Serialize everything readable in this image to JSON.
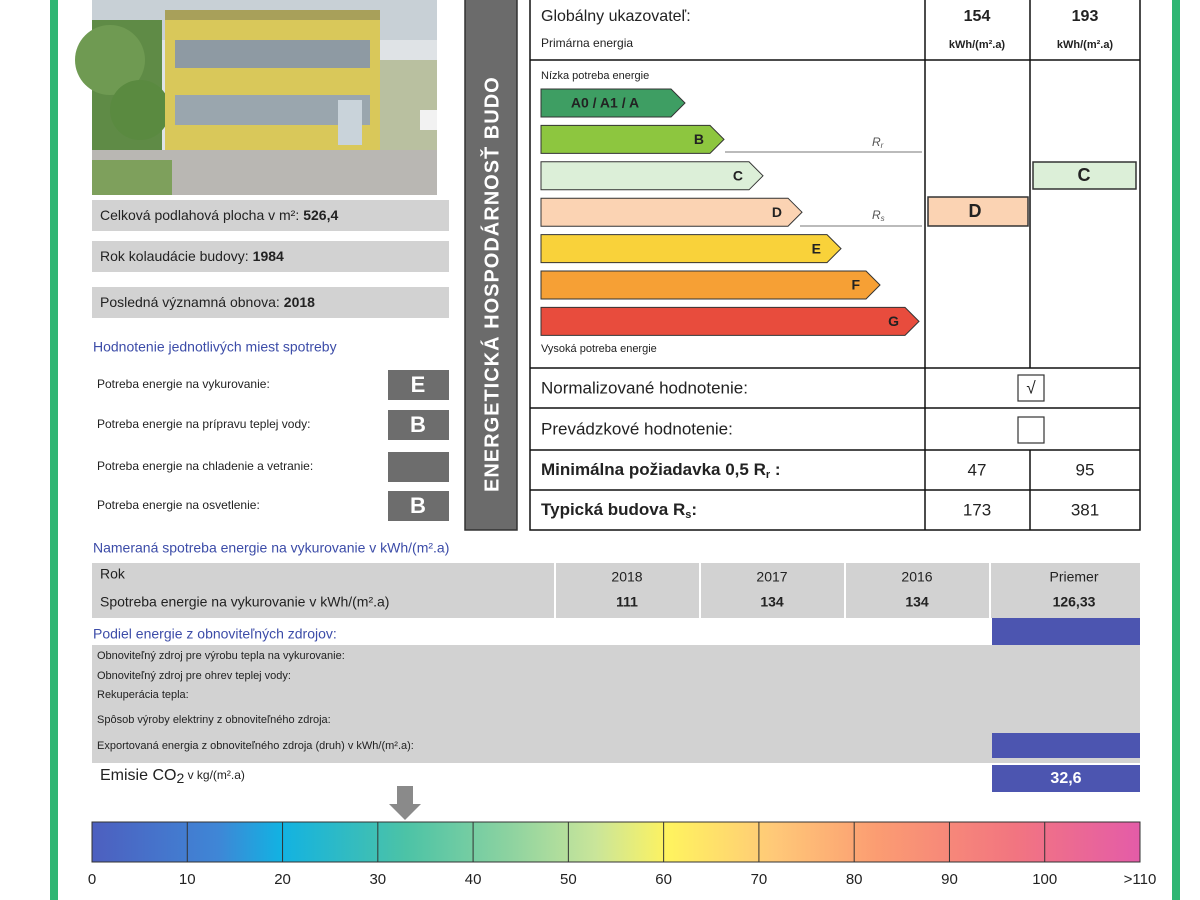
{
  "building": {
    "info": [
      {
        "label": "Celková podlahová plocha v m²:",
        "value": "526,4"
      },
      {
        "label": "Rok kolaudácie budovy:",
        "value": 1984
      },
      {
        "label": "Posledná významná obnova:",
        "value": 2018
      }
    ]
  },
  "ratings": {
    "title": "Hodnotenie jednotlivých miest spotreby",
    "rows": [
      {
        "label": "Potreba energie na vykurovanie:",
        "class": "E"
      },
      {
        "label": "Potreba energie na prípravu teplej vody:",
        "class": "B"
      },
      {
        "label": "Potreba energie na chladenie a vetranie:",
        "class": null
      },
      {
        "label": "Potreba energie na osvetlenie:",
        "class": "B"
      }
    ]
  },
  "side_banner": "ENERGETICKÁ HOSPODÁRNOSŤ BUDO",
  "certificate": {
    "global": {
      "label": "Globálny ukazovateľ:",
      "sublabel": "Primárna energia",
      "values": [
        154,
        193
      ],
      "unit": "kWh/(m².a)"
    },
    "scale": {
      "low_label": "Nízka potreba energie",
      "high_label": "Vysoká potreba energie",
      "classes": [
        {
          "label": "A0 / A1 / A",
          "color": "#3e9e63"
        },
        {
          "label": "B",
          "color": "#8dc63f"
        },
        {
          "label": "C",
          "color": "#dcefd8"
        },
        {
          "label": "D",
          "color": "#fbd3b3"
        },
        {
          "label": "E",
          "color": "#f9d23a"
        },
        {
          "label": "F",
          "color": "#f6a035"
        },
        {
          "label": "G",
          "color": "#e84c3d"
        }
      ],
      "rr_label": {
        "main": "R",
        "sub": "r"
      },
      "rs_label": {
        "main": "R",
        "sub": "s"
      },
      "ratings": [
        "D",
        "C"
      ]
    },
    "normalized": {
      "label": "Normalizované hodnotenie:",
      "mark": "√"
    },
    "operational": {
      "label": "Prevádzkové hodnotenie:"
    },
    "minimum": {
      "label": "Minimálna požiadavka 0,5 R",
      "sub": "r",
      "suffix": " :",
      "values": [
        47,
        95
      ]
    },
    "typical": {
      "label": "Typická budova R",
      "sub": "s",
      "suffix": ":",
      "values": [
        173,
        381
      ]
    }
  },
  "measured": {
    "title": "Nameraná spotreba energie na vykurovanie v kWh/(m².a)",
    "year_label": "Rok",
    "row_label": "Spotreba energie na vykurovanie v kWh/(m².a)",
    "columns": [
      {
        "year": 2018,
        "value": 111
      },
      {
        "year": 2017,
        "value": 134
      },
      {
        "year": 2016,
        "value": 134
      },
      {
        "year": "Priemer",
        "value": "126,33"
      }
    ]
  },
  "renewables": {
    "title": "Podiel energie z obnoviteľných zdrojov:",
    "items": [
      "Obnoviteľný zdroj pre výrobu tepla na vykurovanie:",
      "Obnoviteľný zdroj pre ohrev teplej vody:",
      "Rekuperácia tepla:",
      "Spôsob výroby elektriny z obnoviteľného zdroja:",
      "Exportovaná energia z obnoviteľného zdroja (druh) v kWh/(m².a):"
    ]
  },
  "emissions": {
    "label": "Emisie CO",
    "sub": "2",
    "unit": " v kg/(m².a)",
    "value": "32,6"
  },
  "gauge": {
    "ticks": [
      0,
      10,
      20,
      30,
      40,
      50,
      60,
      70,
      80,
      90,
      100,
      ">110"
    ]
  }
}
